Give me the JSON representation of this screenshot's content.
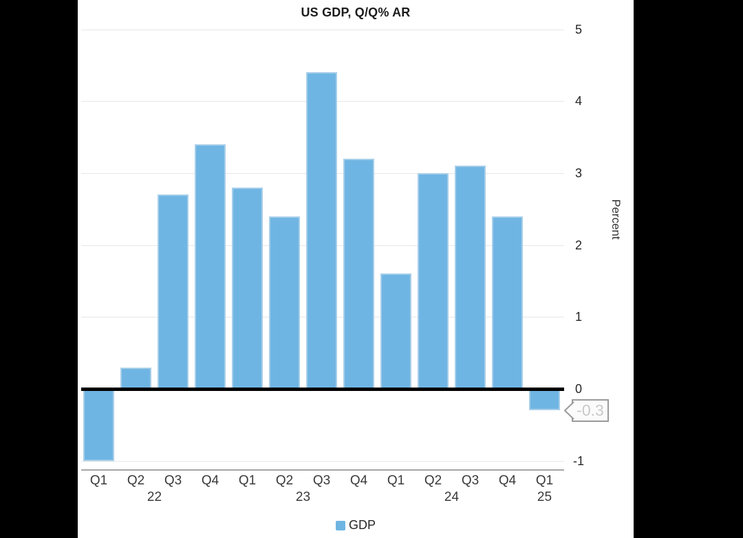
{
  "window": {
    "background_color": "#000000",
    "panel_background_color": "#ffffff"
  },
  "chart": {
    "title": "US GDP, Q/Q% AR",
    "y_axis_label": "Percent",
    "annotation": {
      "text": "-0.3"
    },
    "legend": [
      {
        "label": "GDP",
        "color": "#6FB5E3"
      }
    ]
  },
  "chart_data": {
    "type": "bar",
    "title": "US GDP, Q/Q% AR",
    "xlabel": "",
    "ylabel": "Percent",
    "categories": [
      "Q1",
      "Q2",
      "Q3",
      "Q4",
      "Q1",
      "Q2",
      "Q3",
      "Q4",
      "Q1",
      "Q2",
      "Q3",
      "Q4",
      "Q1"
    ],
    "year_groups": [
      {
        "label": "22",
        "start": 0,
        "end": 3
      },
      {
        "label": "23",
        "start": 4,
        "end": 7
      },
      {
        "label": "24",
        "start": 8,
        "end": 11
      },
      {
        "label": "25",
        "start": 12,
        "end": 12
      }
    ],
    "series": [
      {
        "name": "GDP",
        "values": [
          -1.0,
          0.3,
          2.7,
          3.4,
          2.8,
          2.4,
          4.4,
          3.2,
          1.6,
          3.0,
          3.1,
          2.4,
          -0.3
        ]
      }
    ],
    "values": [
      -1.0,
      0.3,
      2.7,
      3.4,
      2.8,
      2.4,
      4.4,
      3.2,
      1.6,
      3.0,
      3.1,
      2.4,
      -0.3
    ],
    "ylim": [
      -1,
      5
    ],
    "yticks": [
      5,
      4,
      3,
      2,
      1,
      0,
      -1
    ],
    "grid": true,
    "zero_baseline": true,
    "legend_position": "bottom",
    "bar_color": "#6FB5E3",
    "bar_border_color": "#A8CFE9",
    "gridline_color": "#e7e7e7",
    "annotation": {
      "index": 12,
      "text": "-0.3"
    }
  }
}
